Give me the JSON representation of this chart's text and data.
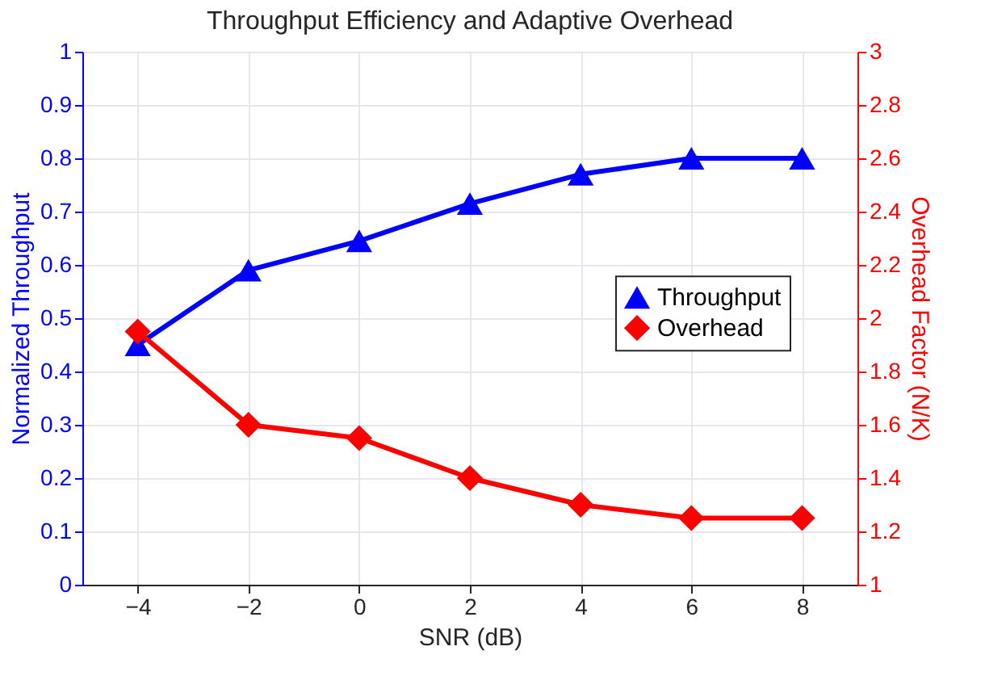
{
  "chart_data": {
    "type": "line",
    "title": "Throughput Efficiency and Adaptive Overhead",
    "xlabel": "SNR (dB)",
    "ylabel": "Normalized Throughput",
    "y2label": "Overhead Factor (N/K)",
    "x": [
      -4,
      -2,
      0,
      2,
      4,
      6,
      8
    ],
    "series": [
      {
        "name": "Throughput",
        "color": "#0000ff",
        "values": [
          0.45,
          0.59,
          0.645,
          0.715,
          0.77,
          0.8,
          0.8
        ],
        "marker": "triangle"
      },
      {
        "name": "Overhead",
        "color": "#ff0000",
        "values": [
          1.95,
          1.6,
          1.55,
          1.4,
          1.3,
          1.25,
          1.25
        ],
        "marker": "diamond",
        "axis": "y2"
      }
    ],
    "xlim": [
      -5,
      9
    ],
    "xticks": [
      -4,
      -2,
      0,
      2,
      4,
      6,
      8
    ],
    "ylim": [
      0,
      1
    ],
    "yticks": [
      0,
      0.1,
      0.2,
      0.3,
      0.4,
      0.5,
      0.6,
      0.7,
      0.8,
      0.9,
      1
    ],
    "y2lim": [
      1,
      3
    ],
    "y2ticks": [
      1,
      1.2,
      1.4,
      1.6,
      1.8,
      2,
      2.2,
      2.4,
      2.6,
      2.8,
      3
    ],
    "grid": true,
    "legend": "right",
    "line_style": "solid"
  }
}
